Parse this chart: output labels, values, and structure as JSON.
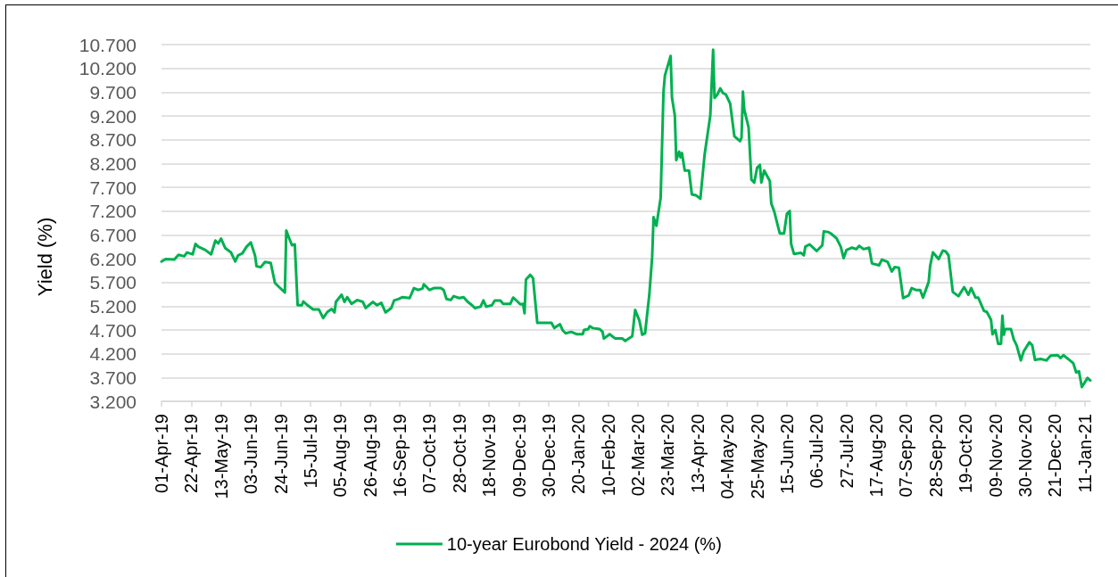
{
  "chart_data": {
    "type": "line",
    "ylabel": "Yield (%)",
    "x": [
      "2019-04-01",
      "2019-04-04",
      "2019-04-10",
      "2019-04-13",
      "2019-04-17",
      "2019-04-19",
      "2019-04-23",
      "2019-04-25",
      "2019-04-27",
      "2019-05-02",
      "2019-05-06",
      "2019-05-09",
      "2019-05-11",
      "2019-05-13",
      "2019-05-16",
      "2019-05-20",
      "2019-05-23",
      "2019-05-25",
      "2019-05-28",
      "2019-05-31",
      "2019-06-03",
      "2019-06-06",
      "2019-06-07",
      "2019-06-10",
      "2019-06-13",
      "2019-06-17",
      "2019-06-20",
      "2019-06-23",
      "2019-06-27",
      "2019-06-28",
      "2019-06-30",
      "2019-07-02",
      "2019-07-04",
      "2019-07-06",
      "2019-07-09",
      "2019-07-10",
      "2019-07-13",
      "2019-07-17",
      "2019-07-21",
      "2019-07-24",
      "2019-07-27",
      "2019-07-30",
      "2019-08-01",
      "2019-08-02",
      "2019-08-06",
      "2019-08-08",
      "2019-08-10",
      "2019-08-13",
      "2019-08-17",
      "2019-08-21",
      "2019-08-23",
      "2019-08-28",
      "2019-08-31",
      "2019-09-03",
      "2019-09-06",
      "2019-09-10",
      "2019-09-12",
      "2019-09-15",
      "2019-09-18",
      "2019-09-23",
      "2019-09-26",
      "2019-09-29",
      "2019-10-02",
      "2019-10-03",
      "2019-10-07",
      "2019-10-10",
      "2019-10-15",
      "2019-10-17",
      "2019-10-19",
      "2019-10-22",
      "2019-10-24",
      "2019-10-28",
      "2019-10-31",
      "2019-11-03",
      "2019-11-06",
      "2019-11-08",
      "2019-11-12",
      "2019-11-14",
      "2019-11-16",
      "2019-11-20",
      "2019-11-22",
      "2019-11-26",
      "2019-11-28",
      "2019-12-03",
      "2019-12-05",
      "2019-12-08",
      "2019-12-10",
      "2019-12-12",
      "2019-12-13",
      "2019-12-14",
      "2019-12-17",
      "2019-12-19",
      "2019-12-22",
      "2019-12-25",
      "2020-01-01",
      "2020-01-03",
      "2020-01-07",
      "2020-01-09",
      "2020-01-11",
      "2020-01-15",
      "2020-01-19",
      "2020-01-23",
      "2020-01-24",
      "2020-01-27",
      "2020-01-28",
      "2020-01-30",
      "2020-02-04",
      "2020-02-06",
      "2020-02-07",
      "2020-02-11",
      "2020-02-15",
      "2020-02-20",
      "2020-02-22",
      "2020-02-27",
      "2020-02-29",
      "2020-03-03",
      "2020-03-05",
      "2020-03-07",
      "2020-03-10",
      "2020-03-12",
      "2020-03-13",
      "2020-03-15",
      "2020-03-18",
      "2020-03-20",
      "2020-03-21",
      "2020-03-25",
      "2020-03-26",
      "2020-03-28",
      "2020-03-29",
      "2020-03-31",
      "2020-04-01",
      "2020-04-02",
      "2020-04-04",
      "2020-04-07",
      "2020-04-09",
      "2020-04-12",
      "2020-04-15",
      "2020-04-18",
      "2020-04-22",
      "2020-04-24",
      "2020-04-25",
      "2020-04-27",
      "2020-04-29",
      "2020-05-01",
      "2020-05-03",
      "2020-05-06",
      "2020-05-09",
      "2020-05-13",
      "2020-05-14",
      "2020-05-15",
      "2020-05-16",
      "2020-05-19",
      "2020-05-21",
      "2020-05-23",
      "2020-05-25",
      "2020-05-27",
      "2020-05-28",
      "2020-05-30",
      "2020-06-03",
      "2020-06-04",
      "2020-06-06",
      "2020-06-10",
      "2020-06-13",
      "2020-06-15",
      "2020-06-17",
      "2020-06-18",
      "2020-06-20",
      "2020-06-25",
      "2020-06-27",
      "2020-06-28",
      "2020-07-01",
      "2020-07-06",
      "2020-07-10",
      "2020-07-11",
      "2020-07-14",
      "2020-07-16",
      "2020-07-20",
      "2020-07-23",
      "2020-07-25",
      "2020-07-27",
      "2020-07-31",
      "2020-08-03",
      "2020-08-05",
      "2020-08-08",
      "2020-08-12",
      "2020-08-14",
      "2020-08-19",
      "2020-08-21",
      "2020-08-25",
      "2020-08-28",
      "2020-08-30",
      "2020-09-02",
      "2020-09-05",
      "2020-09-09",
      "2020-09-11",
      "2020-09-14",
      "2020-09-17",
      "2020-09-19",
      "2020-09-23",
      "2020-09-24",
      "2020-09-26",
      "2020-09-30",
      "2020-10-03",
      "2020-10-05",
      "2020-10-07",
      "2020-10-10",
      "2020-10-14",
      "2020-10-18",
      "2020-10-21",
      "2020-10-23",
      "2020-10-26",
      "2020-10-28",
      "2020-11-01",
      "2020-11-03",
      "2020-11-06",
      "2020-11-07",
      "2020-11-09",
      "2020-11-11",
      "2020-11-13",
      "2020-11-14",
      "2020-11-15",
      "2020-11-16",
      "2020-11-20",
      "2020-11-22",
      "2020-11-24",
      "2020-11-27",
      "2020-11-29",
      "2020-12-03",
      "2020-12-05",
      "2020-12-07",
      "2020-12-11",
      "2020-12-15",
      "2020-12-18",
      "2020-12-23",
      "2020-12-25",
      "2020-12-27",
      "2021-01-01",
      "2021-01-03",
      "2021-01-05",
      "2021-01-07",
      "2021-01-09",
      "2021-01-13",
      "2021-01-15"
    ],
    "series": [
      {
        "name": "10-year Eurobond Yield - 2024 (%)",
        "color": "#00b050",
        "values": [
          6.14,
          6.19,
          6.18,
          6.28,
          6.25,
          6.33,
          6.29,
          6.51,
          6.45,
          6.38,
          6.29,
          6.58,
          6.52,
          6.62,
          6.42,
          6.33,
          6.14,
          6.27,
          6.31,
          6.45,
          6.54,
          6.26,
          6.04,
          6.02,
          6.13,
          6.11,
          5.69,
          5.6,
          5.49,
          6.79,
          6.63,
          6.48,
          6.5,
          5.22,
          5.22,
          5.3,
          5.22,
          5.13,
          5.13,
          4.95,
          5.08,
          5.14,
          5.07,
          5.29,
          5.44,
          5.29,
          5.39,
          5.25,
          5.33,
          5.29,
          5.16,
          5.29,
          5.22,
          5.27,
          5.07,
          5.16,
          5.32,
          5.35,
          5.39,
          5.37,
          5.58,
          5.54,
          5.57,
          5.66,
          5.54,
          5.58,
          5.58,
          5.54,
          5.35,
          5.33,
          5.41,
          5.37,
          5.39,
          5.29,
          5.22,
          5.16,
          5.19,
          5.32,
          5.19,
          5.22,
          5.32,
          5.32,
          5.25,
          5.25,
          5.38,
          5.3,
          5.24,
          5.25,
          5.05,
          5.76,
          5.86,
          5.79,
          4.85,
          4.85,
          4.85,
          4.74,
          4.82,
          4.69,
          4.63,
          4.66,
          4.61,
          4.61,
          4.7,
          4.72,
          4.78,
          4.74,
          4.72,
          4.66,
          4.52,
          4.61,
          4.52,
          4.52,
          4.47,
          4.57,
          5.12,
          4.9,
          4.6,
          4.63,
          5.44,
          6.23,
          7.07,
          6.89,
          7.48,
          9.71,
          10.05,
          10.46,
          9.58,
          9.21,
          8.27,
          8.45,
          8.33,
          8.42,
          8.05,
          8.05,
          7.55,
          7.53,
          7.46,
          8.39,
          9.21,
          10.59,
          9.58,
          9.65,
          9.78,
          9.68,
          9.65,
          9.46,
          8.77,
          8.67,
          8.74,
          9.71,
          9.33,
          8.96,
          7.86,
          7.8,
          8.11,
          8.17,
          7.8,
          8.05,
          7.83,
          7.36,
          7.2,
          6.73,
          6.73,
          7.14,
          7.2,
          6.51,
          6.3,
          6.32,
          6.27,
          6.45,
          6.5,
          6.36,
          6.48,
          6.77,
          6.76,
          6.73,
          6.63,
          6.45,
          6.21,
          6.38,
          6.43,
          6.4,
          6.47,
          6.4,
          6.43,
          6.1,
          6.06,
          6.18,
          6.13,
          5.93,
          6.02,
          6.01,
          5.37,
          5.43,
          5.58,
          5.54,
          5.54,
          5.38,
          5.71,
          6.04,
          6.33,
          6.19,
          6.37,
          6.35,
          6.27,
          5.5,
          5.41,
          5.6,
          5.44,
          5.58,
          5.38,
          5.38,
          5.1,
          5.08,
          4.91,
          4.61,
          4.7,
          4.41,
          4.41,
          5.0,
          4.6,
          4.72,
          4.72,
          4.5,
          4.38,
          4.06,
          4.25,
          4.44,
          4.38,
          4.07,
          4.09,
          4.06,
          4.16,
          4.17,
          4.11,
          4.17,
          4.05,
          4.0,
          3.81,
          3.83,
          3.5,
          3.69,
          3.64
        ]
      }
    ],
    "xlim": [
      "2019-04-01",
      "2021-01-15"
    ],
    "xticks": [
      {
        "value": "2019-04-01",
        "label": "01-Apr-19"
      },
      {
        "value": "2019-04-22",
        "label": "22-Apr-19"
      },
      {
        "value": "2019-05-13",
        "label": "13-May-19"
      },
      {
        "value": "2019-06-03",
        "label": "03-Jun-19"
      },
      {
        "value": "2019-06-24",
        "label": "24-Jun-19"
      },
      {
        "value": "2019-07-15",
        "label": "15-Jul-19"
      },
      {
        "value": "2019-08-05",
        "label": "05-Aug-19"
      },
      {
        "value": "2019-08-26",
        "label": "26-Aug-19"
      },
      {
        "value": "2019-09-16",
        "label": "16-Sep-19"
      },
      {
        "value": "2019-10-07",
        "label": "07-Oct-19"
      },
      {
        "value": "2019-10-28",
        "label": "28-Oct-19"
      },
      {
        "value": "2019-11-18",
        "label": "18-Nov-19"
      },
      {
        "value": "2019-12-09",
        "label": "09-Dec-19"
      },
      {
        "value": "2019-12-30",
        "label": "30-Dec-19"
      },
      {
        "value": "2020-01-20",
        "label": "20-Jan-20"
      },
      {
        "value": "2020-02-10",
        "label": "10-Feb-20"
      },
      {
        "value": "2020-03-02",
        "label": "02-Mar-20"
      },
      {
        "value": "2020-03-23",
        "label": "23-Mar-20"
      },
      {
        "value": "2020-04-13",
        "label": "13-Apr-20"
      },
      {
        "value": "2020-05-04",
        "label": "04-May-20"
      },
      {
        "value": "2020-05-25",
        "label": "25-May-20"
      },
      {
        "value": "2020-06-15",
        "label": "15-Jun-20"
      },
      {
        "value": "2020-07-06",
        "label": "06-Jul-20"
      },
      {
        "value": "2020-07-27",
        "label": "27-Jul-20"
      },
      {
        "value": "2020-08-17",
        "label": "17-Aug-20"
      },
      {
        "value": "2020-09-07",
        "label": "07-Sep-20"
      },
      {
        "value": "2020-09-28",
        "label": "28-Sep-20"
      },
      {
        "value": "2020-10-19",
        "label": "19-Oct-20"
      },
      {
        "value": "2020-11-09",
        "label": "09-Nov-20"
      },
      {
        "value": "2020-11-30",
        "label": "30-Nov-20"
      },
      {
        "value": "2020-12-21",
        "label": "21-Dec-20"
      },
      {
        "value": "2021-01-11",
        "label": "11-Jan-21"
      }
    ],
    "ylim": [
      3.2,
      10.7
    ],
    "yticks": [
      {
        "value": 3.2,
        "label": "3.200"
      },
      {
        "value": 3.7,
        "label": "3.700"
      },
      {
        "value": 4.2,
        "label": "4.200"
      },
      {
        "value": 4.7,
        "label": "4.700"
      },
      {
        "value": 5.2,
        "label": "5.200"
      },
      {
        "value": 5.7,
        "label": "5.700"
      },
      {
        "value": 6.2,
        "label": "6.200"
      },
      {
        "value": 6.7,
        "label": "6.700"
      },
      {
        "value": 7.2,
        "label": "7.200"
      },
      {
        "value": 7.7,
        "label": "7.700"
      },
      {
        "value": 8.2,
        "label": "8.200"
      },
      {
        "value": 8.7,
        "label": "8.700"
      },
      {
        "value": 9.2,
        "label": "9.200"
      },
      {
        "value": 9.7,
        "label": "9.700"
      },
      {
        "value": 10.2,
        "label": "10.200"
      },
      {
        "value": 10.7,
        "label": "10.700"
      }
    ],
    "grid": "y",
    "legend": "bottom",
    "marker": "none",
    "line_style": "solid"
  }
}
